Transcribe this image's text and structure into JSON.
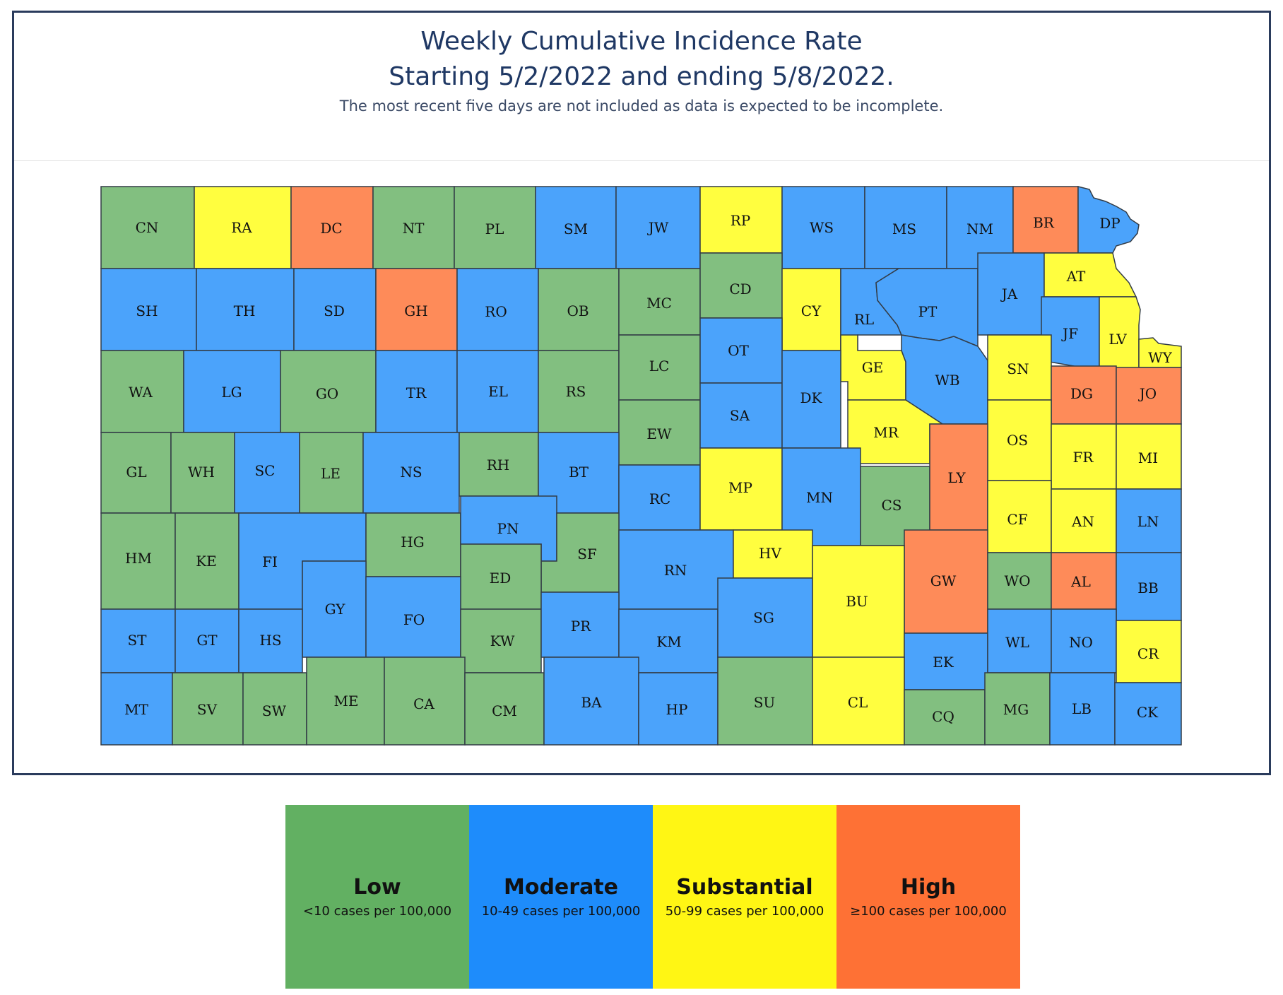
{
  "header": {
    "title_line1": "Weekly Cumulative Incidence Rate",
    "title_line2": "Starting 5/2/2022 and ending 5/8/2022.",
    "subtitle": "The most recent five days are not included as data is expected to be incomplete."
  },
  "colors": {
    "low": "#82bf80",
    "moderate": "#4ba3fb",
    "substantial": "#fffe3f",
    "high": "#fe8b59"
  },
  "legend": [
    {
      "key": "low",
      "level": "Low",
      "range": "<10 cases per 100,000",
      "color": "#62b062"
    },
    {
      "key": "moderate",
      "level": "Moderate",
      "range": "10-49 cases per 100,000",
      "color": "#1e8cfb"
    },
    {
      "key": "substantial",
      "level": "Substantial",
      "range": "50-99 cases per 100,000",
      "color": "#fff614"
    },
    {
      "key": "high",
      "level": "High",
      "range": "≥100 cases per 100,000",
      "color": "#fe7135"
    }
  ],
  "counties": [
    {
      "code": "CN",
      "level": "low"
    },
    {
      "code": "RA",
      "level": "substantial"
    },
    {
      "code": "DC",
      "level": "high"
    },
    {
      "code": "NT",
      "level": "low"
    },
    {
      "code": "PL",
      "level": "low"
    },
    {
      "code": "SM",
      "level": "moderate"
    },
    {
      "code": "JW",
      "level": "moderate"
    },
    {
      "code": "RP",
      "level": "substantial"
    },
    {
      "code": "WS",
      "level": "moderate"
    },
    {
      "code": "MS",
      "level": "moderate"
    },
    {
      "code": "NM",
      "level": "moderate"
    },
    {
      "code": "BR",
      "level": "high"
    },
    {
      "code": "DP",
      "level": "moderate"
    },
    {
      "code": "SH",
      "level": "moderate"
    },
    {
      "code": "TH",
      "level": "moderate"
    },
    {
      "code": "SD",
      "level": "moderate"
    },
    {
      "code": "GH",
      "level": "high"
    },
    {
      "code": "RO",
      "level": "moderate"
    },
    {
      "code": "OB",
      "level": "low"
    },
    {
      "code": "MC",
      "level": "low"
    },
    {
      "code": "CD",
      "level": "low"
    },
    {
      "code": "CY",
      "level": "substantial"
    },
    {
      "code": "RL",
      "level": "moderate"
    },
    {
      "code": "PT",
      "level": "moderate"
    },
    {
      "code": "JA",
      "level": "moderate"
    },
    {
      "code": "AT",
      "level": "substantial"
    },
    {
      "code": "JF",
      "level": "moderate"
    },
    {
      "code": "LV",
      "level": "substantial"
    },
    {
      "code": "WY",
      "level": "substantial"
    },
    {
      "code": "WA",
      "level": "low"
    },
    {
      "code": "LG",
      "level": "moderate"
    },
    {
      "code": "GO",
      "level": "low"
    },
    {
      "code": "TR",
      "level": "moderate"
    },
    {
      "code": "EL",
      "level": "moderate"
    },
    {
      "code": "RS",
      "level": "low"
    },
    {
      "code": "LC",
      "level": "low"
    },
    {
      "code": "OT",
      "level": "moderate"
    },
    {
      "code": "GE",
      "level": "substantial"
    },
    {
      "code": "WB",
      "level": "moderate"
    },
    {
      "code": "SN",
      "level": "substantial"
    },
    {
      "code": "DG",
      "level": "high"
    },
    {
      "code": "JO",
      "level": "high"
    },
    {
      "code": "EW",
      "level": "low"
    },
    {
      "code": "SA",
      "level": "moderate"
    },
    {
      "code": "DK",
      "level": "moderate"
    },
    {
      "code": "MR",
      "level": "substantial"
    },
    {
      "code": "OS",
      "level": "substantial"
    },
    {
      "code": "GL",
      "level": "low"
    },
    {
      "code": "WH",
      "level": "low"
    },
    {
      "code": "SC",
      "level": "moderate"
    },
    {
      "code": "LE",
      "level": "low"
    },
    {
      "code": "NS",
      "level": "moderate"
    },
    {
      "code": "RH",
      "level": "low"
    },
    {
      "code": "BT",
      "level": "moderate"
    },
    {
      "code": "RC",
      "level": "moderate"
    },
    {
      "code": "MP",
      "level": "substantial"
    },
    {
      "code": "MN",
      "level": "moderate"
    },
    {
      "code": "CS",
      "level": "low"
    },
    {
      "code": "LY",
      "level": "high"
    },
    {
      "code": "FR",
      "level": "substantial"
    },
    {
      "code": "MI",
      "level": "substantial"
    },
    {
      "code": "HM",
      "level": "low"
    },
    {
      "code": "KE",
      "level": "low"
    },
    {
      "code": "FI",
      "level": "moderate"
    },
    {
      "code": "HG",
      "level": "low"
    },
    {
      "code": "PN",
      "level": "moderate"
    },
    {
      "code": "SF",
      "level": "low"
    },
    {
      "code": "CF",
      "level": "substantial"
    },
    {
      "code": "AN",
      "level": "substantial"
    },
    {
      "code": "LN",
      "level": "moderate"
    },
    {
      "code": "ED",
      "level": "low"
    },
    {
      "code": "RN",
      "level": "moderate"
    },
    {
      "code": "HV",
      "level": "substantial"
    },
    {
      "code": "GW",
      "level": "high"
    },
    {
      "code": "WO",
      "level": "low"
    },
    {
      "code": "AL",
      "level": "high"
    },
    {
      "code": "BB",
      "level": "moderate"
    },
    {
      "code": "GY",
      "level": "moderate"
    },
    {
      "code": "BU",
      "level": "substantial"
    },
    {
      "code": "FO",
      "level": "moderate"
    },
    {
      "code": "ST",
      "level": "moderate"
    },
    {
      "code": "GT",
      "level": "moderate"
    },
    {
      "code": "HS",
      "level": "moderate"
    },
    {
      "code": "KW",
      "level": "low"
    },
    {
      "code": "PR",
      "level": "moderate"
    },
    {
      "code": "KM",
      "level": "moderate"
    },
    {
      "code": "SG",
      "level": "moderate"
    },
    {
      "code": "EK",
      "level": "moderate"
    },
    {
      "code": "WL",
      "level": "moderate"
    },
    {
      "code": "NO",
      "level": "moderate"
    },
    {
      "code": "CR",
      "level": "substantial"
    },
    {
      "code": "MT",
      "level": "moderate"
    },
    {
      "code": "SV",
      "level": "low"
    },
    {
      "code": "SW",
      "level": "low"
    },
    {
      "code": "ME",
      "level": "low"
    },
    {
      "code": "CA",
      "level": "low"
    },
    {
      "code": "CM",
      "level": "low"
    },
    {
      "code": "BA",
      "level": "moderate"
    },
    {
      "code": "HP",
      "level": "moderate"
    },
    {
      "code": "SU",
      "level": "low"
    },
    {
      "code": "CL",
      "level": "substantial"
    },
    {
      "code": "CQ",
      "level": "low"
    },
    {
      "code": "MG",
      "level": "low"
    },
    {
      "code": "LB",
      "level": "moderate"
    },
    {
      "code": "CK",
      "level": "moderate"
    }
  ]
}
